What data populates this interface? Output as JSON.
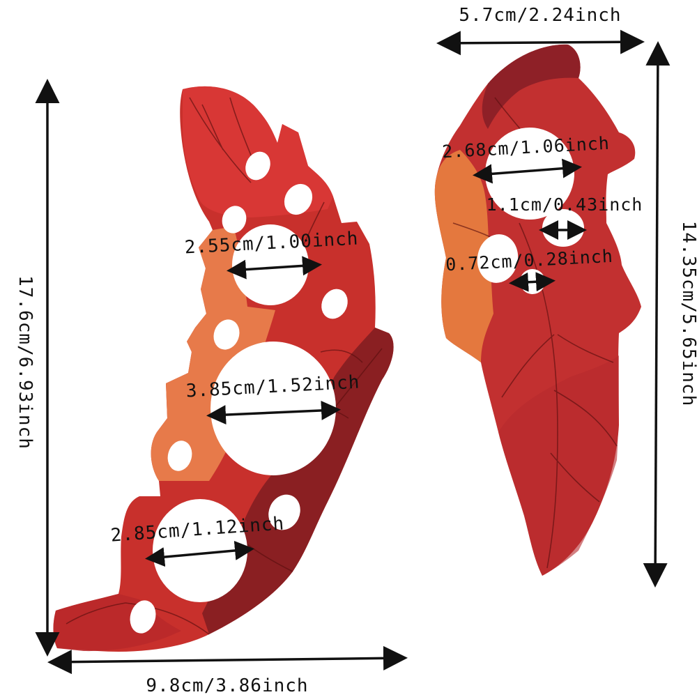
{
  "colors": {
    "background": "#ffffff",
    "leaf_red": "#c8302c",
    "leaf_bright_red": "#dd3a38",
    "leaf_dark_red": "#8a1f22",
    "leaf_orange": "#e77a4a",
    "leaf_orange_light": "#ec8a52",
    "vein": "#5a1010",
    "dimension_ink": "#111111"
  },
  "left_piece": {
    "width_label": "9.8cm/3.86inch",
    "height_label": "17.6cm/6.93inch",
    "hole_labels": {
      "top": "2.55cm/1.00inch",
      "middle": "3.85cm/1.52inch",
      "bottom": "2.85cm/1.12inch"
    }
  },
  "right_piece": {
    "width_label": "5.7cm/2.24inch",
    "height_label": "14.35cm/5.65inch",
    "hole_labels": {
      "large": "2.68cm/1.06inch",
      "medium": "1.1cm/0.43inch",
      "small": "0.72cm/0.28inch"
    }
  }
}
